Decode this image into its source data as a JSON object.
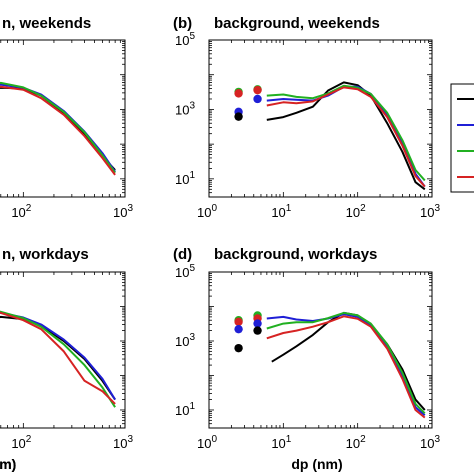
{
  "colors": {
    "black": "#000000",
    "blue": "#1f1fd6",
    "green": "#21b021",
    "red": "#d62323"
  },
  "chart_data": [
    {
      "panel": "a",
      "type": "line",
      "title": "n, weekends",
      "x_scale": "log",
      "y_scale": "log",
      "xlim": [
        1,
        1000
      ],
      "ylim": [
        3,
        100000
      ],
      "x_ticks": [
        "10^2",
        "10^3"
      ],
      "y_ticks": [],
      "xlabel": "(nm)",
      "ylabel": "",
      "series": [
        {
          "color": "black",
          "x": [
            12,
            20,
            35,
            60,
            100,
            150,
            250,
            400,
            600,
            800
          ],
          "y": [
            3000,
            3300,
            3800,
            4200,
            4000,
            2500,
            800,
            200,
            45,
            18
          ]
        },
        {
          "color": "blue",
          "x": [
            12,
            20,
            35,
            60,
            100,
            150,
            250,
            400,
            600,
            800
          ],
          "y": [
            2500,
            3200,
            4000,
            5200,
            4200,
            2700,
            900,
            230,
            55,
            16
          ]
        },
        {
          "color": "green",
          "x": [
            12,
            20,
            35,
            60,
            100,
            150,
            250,
            400,
            600,
            800
          ],
          "y": [
            3200,
            3500,
            4300,
            5800,
            4300,
            2500,
            850,
            220,
            48,
            15
          ]
        },
        {
          "color": "red",
          "x": [
            12,
            20,
            35,
            60,
            100,
            150,
            250,
            400,
            600,
            800
          ],
          "y": [
            3300,
            3700,
            4000,
            4500,
            3700,
            2100,
            700,
            170,
            40,
            13
          ]
        }
      ],
      "markers": []
    },
    {
      "panel": "b",
      "type": "line",
      "title": "background, weekends",
      "x_scale": "log",
      "y_scale": "log",
      "xlim": [
        1,
        1000
      ],
      "ylim": [
        3,
        100000
      ],
      "x_ticks": [
        "10^0",
        "10^1",
        "10^2",
        "10^3"
      ],
      "y_ticks": [
        "10^1",
        "10^3",
        "10^5"
      ],
      "xlabel": "",
      "ylabel": "",
      "series": [
        {
          "color": "black",
          "x": [
            6,
            10,
            15,
            25,
            40,
            65,
            100,
            150,
            250,
            400,
            600,
            800
          ],
          "y": [
            500,
            600,
            800,
            1200,
            3500,
            6000,
            5000,
            2500,
            400,
            60,
            8,
            5
          ]
        },
        {
          "color": "blue",
          "x": [
            6,
            10,
            15,
            25,
            40,
            65,
            100,
            150,
            250,
            400,
            600,
            800
          ],
          "y": [
            1800,
            2000,
            1900,
            1800,
            2500,
            4500,
            4500,
            2800,
            700,
            110,
            14,
            6
          ]
        },
        {
          "color": "green",
          "x": [
            6,
            10,
            15,
            25,
            40,
            65,
            100,
            150,
            250,
            400,
            600,
            800
          ],
          "y": [
            2500,
            2700,
            2300,
            2100,
            2900,
            4800,
            4200,
            2800,
            800,
            130,
            18,
            9
          ]
        },
        {
          "color": "red",
          "x": [
            6,
            10,
            15,
            25,
            40,
            65,
            100,
            150,
            250,
            400,
            600,
            800
          ],
          "y": [
            1300,
            1600,
            1500,
            1700,
            2700,
            4300,
            3800,
            2300,
            600,
            90,
            12,
            6
          ]
        }
      ],
      "markers": [
        {
          "color": "green",
          "x": 2.5,
          "y": 3200
        },
        {
          "color": "green",
          "x": 4.5,
          "y": 3800
        },
        {
          "color": "red",
          "x": 2.5,
          "y": 2900
        },
        {
          "color": "red",
          "x": 4.5,
          "y": 3600
        },
        {
          "color": "blue",
          "x": 2.5,
          "y": 850
        },
        {
          "color": "blue",
          "x": 4.5,
          "y": 2000
        },
        {
          "color": "black",
          "x": 2.5,
          "y": 620
        }
      ]
    },
    {
      "panel": "c",
      "type": "line",
      "title": "n, workdays",
      "x_scale": "log",
      "y_scale": "log",
      "xlim": [
        1,
        1000
      ],
      "ylim": [
        3,
        100000
      ],
      "x_ticks": [
        "10^2",
        "10^3"
      ],
      "y_ticks": [],
      "xlabel": "(nm)",
      "ylabel": "",
      "series": [
        {
          "color": "black",
          "x": [
            12,
            20,
            35,
            60,
            100,
            150,
            250,
            400,
            600,
            800
          ],
          "y": [
            1200,
            2000,
            3600,
            5000,
            4300,
            2800,
            1000,
            300,
            70,
            20
          ]
        },
        {
          "color": "blue",
          "x": [
            12,
            20,
            35,
            60,
            100,
            150,
            250,
            400,
            600,
            800
          ],
          "y": [
            6500,
            8000,
            7200,
            6500,
            4800,
            3000,
            1100,
            330,
            80,
            20
          ]
        },
        {
          "color": "green",
          "x": [
            12,
            20,
            35,
            60,
            100,
            150,
            250,
            400,
            600,
            800
          ],
          "y": [
            7000,
            9000,
            8500,
            7000,
            4600,
            2600,
            800,
            200,
            45,
            12
          ]
        },
        {
          "color": "red",
          "x": [
            12,
            20,
            35,
            60,
            100,
            150,
            250,
            400,
            600,
            800
          ],
          "y": [
            8000,
            9500,
            9000,
            6500,
            4000,
            2200,
            500,
            70,
            35,
            15
          ]
        }
      ],
      "markers": []
    },
    {
      "panel": "d",
      "type": "line",
      "title": "background, workdays",
      "x_scale": "log",
      "y_scale": "log",
      "xlim": [
        1,
        1000
      ],
      "ylim": [
        3,
        100000
      ],
      "x_ticks": [
        "10^0",
        "10^1",
        "10^2",
        "10^3"
      ],
      "y_ticks": [
        "10^1",
        "10^3",
        "10^5"
      ],
      "xlabel": "dp (nm)",
      "ylabel": "",
      "series": [
        {
          "color": "black",
          "x": [
            7,
            10,
            15,
            25,
            40,
            65,
            100,
            150,
            250,
            400,
            600,
            800
          ],
          "y": [
            250,
            400,
            700,
            1500,
            3500,
            6500,
            5500,
            3000,
            800,
            150,
            20,
            10
          ]
        },
        {
          "color": "blue",
          "x": [
            6,
            10,
            15,
            25,
            40,
            65,
            100,
            150,
            250,
            400,
            600,
            800
          ],
          "y": [
            4500,
            5000,
            4200,
            3800,
            4500,
            6000,
            5000,
            2800,
            700,
            100,
            12,
            7
          ]
        },
        {
          "color": "green",
          "x": [
            6,
            10,
            15,
            25,
            40,
            65,
            100,
            150,
            250,
            400,
            600,
            800
          ],
          "y": [
            2300,
            3200,
            3500,
            3500,
            4600,
            6500,
            5500,
            3200,
            800,
            120,
            15,
            8
          ]
        },
        {
          "color": "red",
          "x": [
            6,
            10,
            15,
            25,
            40,
            65,
            100,
            150,
            250,
            400,
            600,
            800
          ],
          "y": [
            1200,
            1700,
            2000,
            2600,
            3500,
            5200,
            4400,
            2600,
            600,
            80,
            10,
            6
          ]
        }
      ],
      "markers": [
        {
          "color": "green",
          "x": 2.5,
          "y": 4000
        },
        {
          "color": "green",
          "x": 4.5,
          "y": 5500
        },
        {
          "color": "red",
          "x": 2.5,
          "y": 3600
        },
        {
          "color": "red",
          "x": 4.5,
          "y": 4500
        },
        {
          "color": "blue",
          "x": 2.5,
          "y": 2200
        },
        {
          "color": "blue",
          "x": 4.5,
          "y": 3200
        },
        {
          "color": "black",
          "x": 2.5,
          "y": 620
        },
        {
          "color": "black",
          "x": 4.5,
          "y": 2000
        }
      ]
    }
  ],
  "legend": {
    "placement": "right",
    "entries": [
      {
        "color": "black",
        "label": ""
      },
      {
        "color": "blue",
        "label": ""
      },
      {
        "color": "green",
        "label": ""
      },
      {
        "color": "red",
        "label": ""
      }
    ]
  }
}
